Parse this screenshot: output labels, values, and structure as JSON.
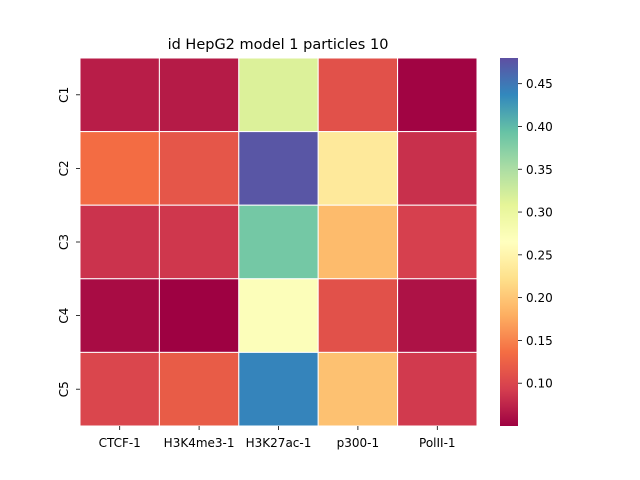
{
  "chart_data": {
    "type": "heatmap",
    "title": "id HepG2 model 1 particles 10",
    "x_categories": [
      "CTCF-1",
      "H3K4me3-1",
      "H3K27ac-1",
      "p300-1",
      "PolII-1"
    ],
    "y_categories": [
      "C1",
      "C2",
      "C3",
      "C4",
      "C5"
    ],
    "values": [
      [
        0.07,
        0.068,
        0.315,
        0.11,
        0.052
      ],
      [
        0.135,
        0.115,
        0.475,
        0.235,
        0.083
      ],
      [
        0.085,
        0.088,
        0.385,
        0.19,
        0.095
      ],
      [
        0.058,
        0.05,
        0.27,
        0.11,
        0.062
      ],
      [
        0.1,
        0.12,
        0.44,
        0.195,
        0.09
      ]
    ],
    "colormap": "Spectral",
    "vmin": 0.05,
    "vmax": 0.48,
    "colorbar_ticks": [
      0.1,
      0.15,
      0.2,
      0.25,
      0.3,
      0.35,
      0.4,
      0.45
    ],
    "colorbar_tick_labels": [
      "0.10",
      "0.15",
      "0.20",
      "0.25",
      "0.30",
      "0.35",
      "0.40",
      "0.45"
    ],
    "cell_border_color": "#ffffff"
  }
}
